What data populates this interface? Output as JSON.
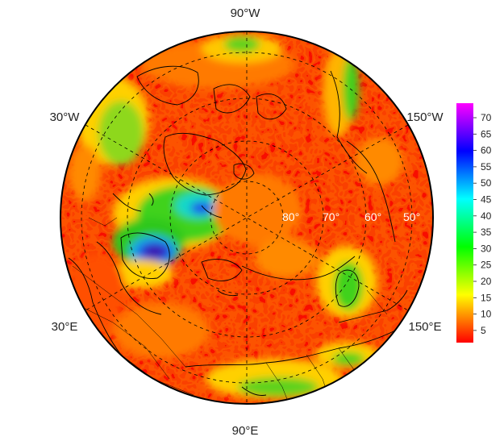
{
  "map": {
    "projection": "north-polar-stereographic",
    "longitude_labels": {
      "top": "90°W",
      "upper_left": "30°W",
      "upper_right": "150°W",
      "lower_left": "30°E",
      "lower_right": "150°E",
      "bottom": "90°E"
    },
    "latitude_labels": [
      "80°",
      "70°",
      "60°",
      "50°"
    ],
    "field_colors": {
      "background_red": "#f80a00",
      "orange": "#ff6a00",
      "yellow": "#ffd800",
      "green": "#3fd21a",
      "cyan": "#18d8c8",
      "blue": "#1e56e8",
      "indigo": "#3a16b0"
    }
  },
  "colorbar": {
    "ticks": [
      "70",
      "65",
      "60",
      "55",
      "50",
      "45",
      "40",
      "35",
      "30",
      "25",
      "20",
      "15",
      "10",
      "5"
    ],
    "gradient_colors": [
      "#ff00ff",
      "#8000ff",
      "#0000ff",
      "#0080ff",
      "#00ffff",
      "#00ff80",
      "#00ff00",
      "#80ff00",
      "#ffff00",
      "#ff8000",
      "#ff0000"
    ]
  }
}
